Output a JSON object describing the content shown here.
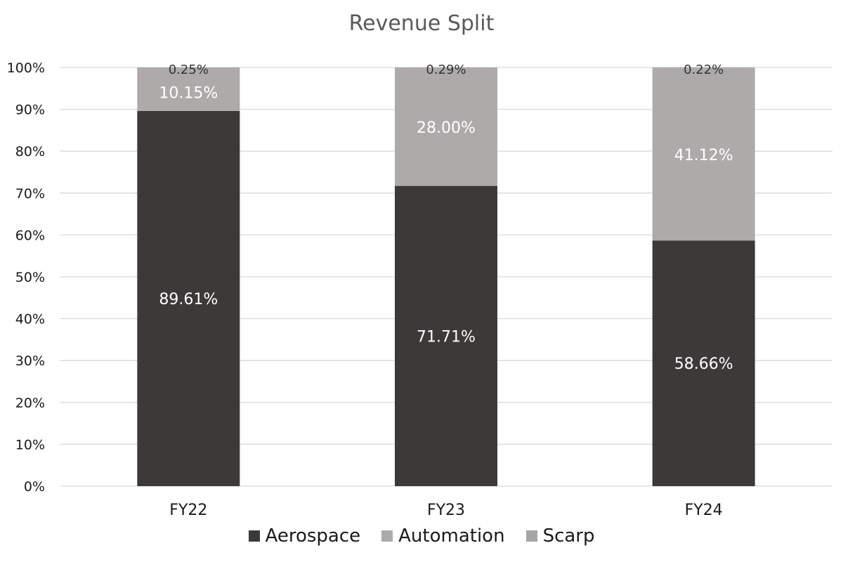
{
  "chart_data": {
    "type": "bar",
    "stacked": true,
    "title": "Revenue Split",
    "categories": [
      "FY22",
      "FY23",
      "FY24"
    ],
    "series": [
      {
        "name": "Aerospace",
        "values": [
          89.61,
          71.71,
          58.66
        ],
        "labels": [
          "89.61%",
          "71.71%",
          "58.66%"
        ],
        "color": "#3d3939",
        "label_color": "#ffffff"
      },
      {
        "name": "Automation",
        "values": [
          10.15,
          28.0,
          41.12
        ],
        "labels": [
          "10.15%",
          "28.00%",
          "41.12%"
        ],
        "color": "#aeaaaa",
        "label_color": "#ffffff"
      },
      {
        "name": "Scarp",
        "values": [
          0.25,
          0.29,
          0.22
        ],
        "labels": [
          "0.25%",
          "0.29%",
          "0.22%"
        ],
        "color": "#a5a5a5",
        "label_color": "#333333"
      }
    ],
    "ylim": [
      0,
      100
    ],
    "y_ticks": [
      "0%",
      "10%",
      "20%",
      "30%",
      "40%",
      "50%",
      "60%",
      "70%",
      "80%",
      "90%",
      "100%"
    ],
    "grid": true,
    "legend_position": "bottom"
  }
}
